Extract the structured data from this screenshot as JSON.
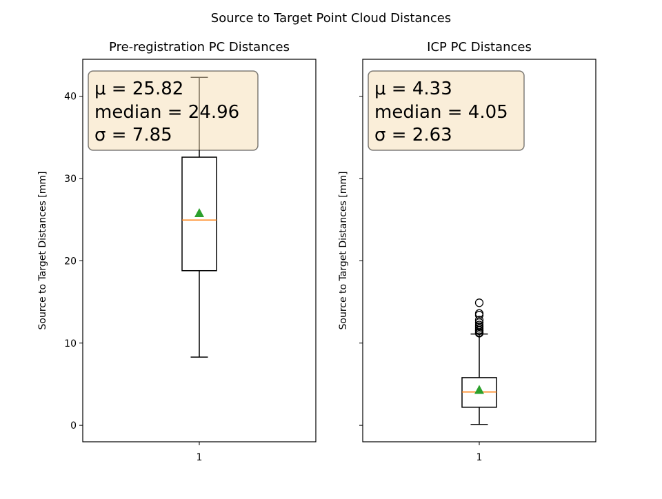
{
  "figure": {
    "suptitle": "Source to Target Point Cloud Distances"
  },
  "colors": {
    "box": "#000000",
    "median": "#ff7f0e",
    "mean_marker": "#2ca02c",
    "stats_box_fill": "#f5deb3",
    "stats_box_edge": "#000000"
  },
  "chart_data": [
    {
      "type": "box",
      "title": "Pre-registration PC Distances",
      "xlabel": "",
      "ylabel": "Source to Target Distances [mm]",
      "categories": [
        "1"
      ],
      "ylim": [
        -2.0,
        44.5
      ],
      "yticks": [
        0,
        10,
        20,
        30,
        40
      ],
      "ytick_labels_visible": true,
      "boxes": [
        {
          "whisker_low": 8.3,
          "q1": 18.8,
          "median": 24.96,
          "q3": 32.6,
          "whisker_high": 42.3,
          "mean": 25.82,
          "outliers": []
        }
      ],
      "stats": {
        "mu_label": "μ = 25.82",
        "median_label": "median = 24.96",
        "sigma_label": "σ = 7.85"
      }
    },
    {
      "type": "box",
      "title": "ICP PC Distances",
      "xlabel": "",
      "ylabel": "Source to Target Distances [mm]",
      "categories": [
        "1"
      ],
      "ylim": [
        -2.0,
        44.5
      ],
      "yticks": [
        0,
        10,
        20,
        30,
        40
      ],
      "ytick_labels_visible": false,
      "boxes": [
        {
          "whisker_low": 0.1,
          "q1": 2.2,
          "median": 4.05,
          "q3": 5.8,
          "whisker_high": 11.1,
          "mean": 4.33,
          "outliers": [
            11.2,
            11.3,
            11.5,
            11.6,
            11.8,
            12.0,
            12.2,
            12.5,
            12.8,
            13.4,
            13.6,
            14.9
          ]
        }
      ],
      "stats": {
        "mu_label": "μ = 4.33",
        "median_label": "median = 4.05",
        "sigma_label": "σ = 2.63"
      }
    }
  ]
}
